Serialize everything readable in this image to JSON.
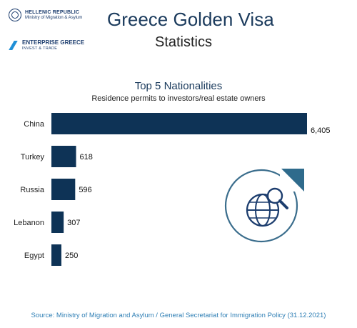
{
  "branding": {
    "hellenic_title": "HELLENIC REPUBLIC",
    "hellenic_sub": "Ministry of Migration & Asylum",
    "enterprise_title": "ENTERPRISE GREECE",
    "enterprise_sub": "INVEST & TRADE"
  },
  "header": {
    "title": "Greece Golden Visa",
    "subtitle": "Statistics"
  },
  "chart_data": {
    "type": "bar",
    "orientation": "horizontal",
    "title": "Top 5 Nationalities",
    "subtitle": "Residence permits to investors/real estate owners",
    "categories": [
      "China",
      "Turkey",
      "Russia",
      "Lebanon",
      "Egypt"
    ],
    "values": [
      6405,
      618,
      596,
      307,
      250
    ],
    "value_labels": [
      "6,405",
      "618",
      "596",
      "307",
      "250"
    ],
    "xlabel": "",
    "ylabel": "",
    "xlim": [
      0,
      6405
    ],
    "grid": false,
    "legend": "none",
    "colors": {
      "bar": "#0e3356"
    }
  },
  "decoration": {
    "icon": "globe-magnifier-icon",
    "colors": {
      "ring": "#3a6d8c",
      "globe": "#1c3d6e",
      "accent": "#2f6b8c"
    }
  },
  "footer": {
    "source": "Source: Ministry of Migration and Asylum / General Secretariat for Immigration Policy (31.12.2021)"
  }
}
